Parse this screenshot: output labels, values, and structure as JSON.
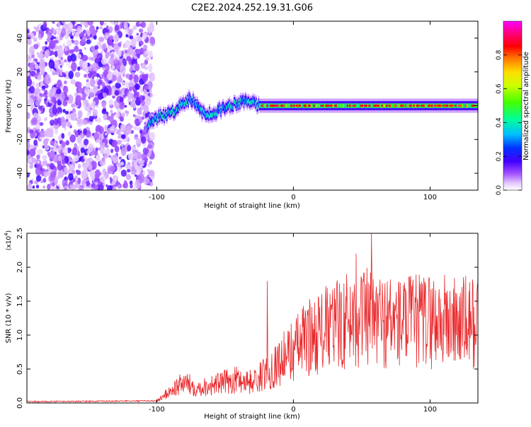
{
  "title": "C2E2.2024.252.19.31.G06",
  "chart_data": [
    {
      "type": "heatmap",
      "xlabel": "Height of straight line (km)",
      "ylabel": "Frequency (Hz)",
      "xlim": [
        -195,
        135
      ],
      "ylim": [
        -50,
        50
      ],
      "xticks": [
        -100,
        0,
        100
      ],
      "yticks": [
        -40,
        -20,
        0,
        20,
        40
      ],
      "colorbar": {
        "label": "Normalized spectral amplitude",
        "range": [
          0,
          1
        ],
        "ticks": [
          0.0,
          0.2,
          0.4,
          0.6,
          0.8
        ],
        "colors": [
          "#ffffff",
          "#d8b4ff",
          "#9a3cff",
          "#5a00ff",
          "#0033ff",
          "#00c8ff",
          "#00ff66",
          "#aaff00",
          "#ffee00",
          "#ff8800",
          "#ff0000",
          "#ff0080",
          "#ff00ff"
        ]
      },
      "noise_region_x": [
        -195,
        -107
      ],
      "ridge": {
        "points": [
          [
            -107,
            -12
          ],
          [
            -100,
            -7
          ],
          [
            -90,
            -5
          ],
          [
            -80,
            2
          ],
          [
            -75,
            4
          ],
          [
            -68,
            -3
          ],
          [
            -60,
            -5
          ],
          [
            -50,
            -1
          ],
          [
            -40,
            2
          ],
          [
            -30,
            3
          ],
          [
            -25,
            0
          ],
          [
            -10,
            0
          ],
          [
            0,
            0
          ],
          [
            50,
            0
          ],
          [
            100,
            0
          ],
          [
            135,
            0
          ]
        ],
        "band_halfwidth_hz": 3,
        "core_start_x": -25
      }
    },
    {
      "type": "line",
      "xlabel": "Height of straight line (km)",
      "ylabel": "SNR (10 * v/v)",
      "y_multiplier": "(x10^4)",
      "xlim": [
        -195,
        135
      ],
      "ylim": [
        0,
        2.5
      ],
      "xticks": [
        -100,
        0,
        100
      ],
      "yticks": [
        0.0,
        0.5,
        1.0,
        1.5,
        2.0,
        2.5
      ],
      "line_color": "#e8272a",
      "envelope": [
        [
          -195,
          0.02
        ],
        [
          -100,
          0.03
        ],
        [
          -90,
          0.2
        ],
        [
          -80,
          0.35
        ],
        [
          -70,
          0.25
        ],
        [
          -60,
          0.3
        ],
        [
          -50,
          0.35
        ],
        [
          -40,
          0.4
        ],
        [
          -30,
          0.35
        ],
        [
          -20,
          0.5
        ],
        [
          -10,
          0.7
        ],
        [
          0,
          0.9
        ],
        [
          10,
          1.1
        ],
        [
          20,
          1.2
        ],
        [
          30,
          1.3
        ],
        [
          40,
          1.4
        ],
        [
          50,
          1.45
        ],
        [
          60,
          1.4
        ],
        [
          80,
          1.35
        ],
        [
          100,
          1.4
        ],
        [
          120,
          1.35
        ],
        [
          135,
          1.35
        ]
      ],
      "peaks": [
        [
          -19,
          1.8
        ],
        [
          57,
          2.5
        ],
        [
          46,
          2.2
        ]
      ]
    }
  ]
}
